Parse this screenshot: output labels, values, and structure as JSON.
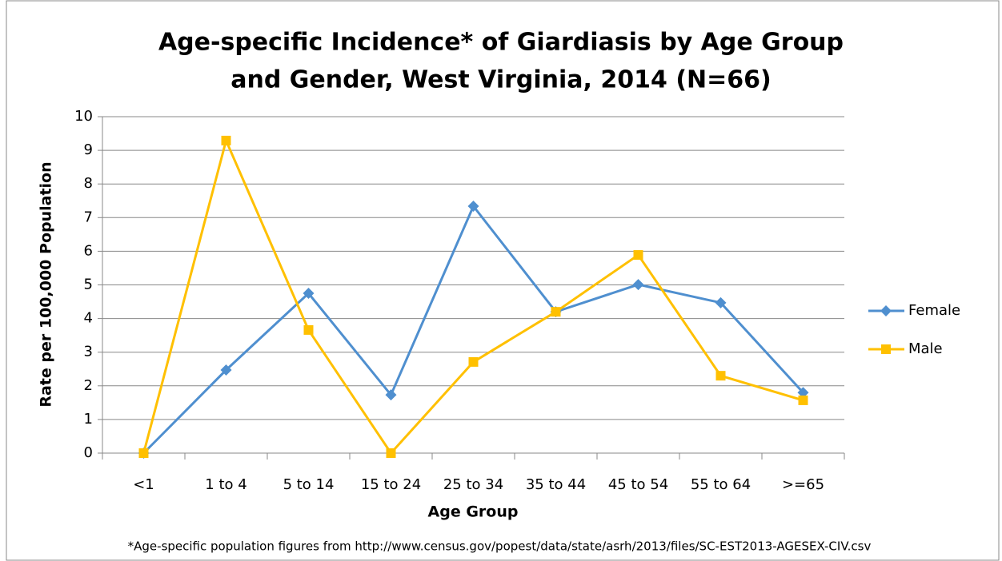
{
  "chart_data": {
    "type": "line",
    "title": "Age-specific Incidence* of Giardiasis by Age Group",
    "subtitle": "and Gender, West Virginia, 2014 (N=66)",
    "x_label": "Age Group",
    "y_label": "Rate per 100,000 Population",
    "footnote": "*Age-specific population figures from http://www.census.gov/popest/data/state/asrh/2013/files/SC-EST2013-AGESEX-CIV.csv",
    "categories": [
      "<1",
      "1 to 4",
      "5 to 14",
      "15 to 24",
      "25 to 34",
      "35 to 44",
      "45 to 54",
      "55 to 64",
      ">=65"
    ],
    "series": [
      {
        "name": "Female",
        "color": "#4f8fcf",
        "marker": "diamond",
        "values": [
          0,
          2.47,
          4.75,
          1.73,
          7.34,
          4.2,
          5.01,
          4.47,
          1.8
        ]
      },
      {
        "name": "Male",
        "color": "#ffc000",
        "marker": "square",
        "values": [
          0,
          9.29,
          3.66,
          0,
          2.71,
          4.2,
          5.89,
          2.3,
          1.57
        ]
      }
    ],
    "ylim": [
      0,
      10
    ],
    "yticks": [
      0,
      1,
      2,
      3,
      4,
      5,
      6,
      7,
      8,
      9,
      10
    ],
    "grid": true,
    "legend": "right"
  }
}
